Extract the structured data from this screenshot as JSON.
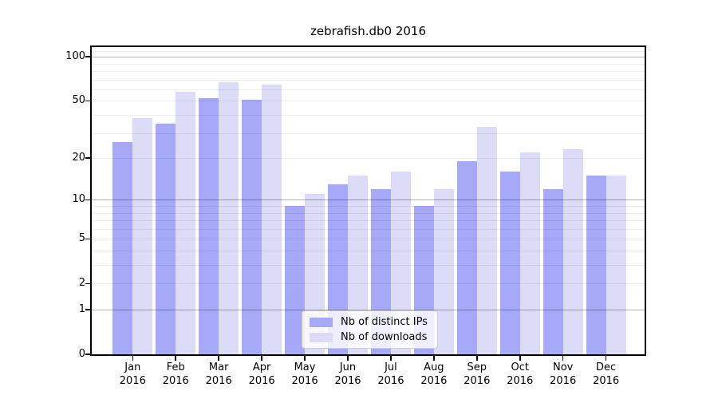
{
  "chart_data": {
    "type": "bar",
    "title": "zebrafish.db0 2016",
    "yscale": "log1p",
    "ylim": [
      0,
      118
    ],
    "grid": true,
    "legend_position": "lower center",
    "yticks": [
      0,
      1,
      2,
      5,
      10,
      20,
      50,
      100
    ],
    "major_gridlines": [
      1,
      10,
      100
    ],
    "minor_gridlines": [
      2,
      3,
      4,
      5,
      6,
      7,
      8,
      9,
      20,
      30,
      40,
      50,
      60,
      70,
      80,
      90,
      110
    ],
    "categories": [
      "Jan 2016",
      "Feb 2016",
      "Mar 2016",
      "Apr 2016",
      "May 2016",
      "Jun 2016",
      "Jul 2016",
      "Aug 2016",
      "Sep 2016",
      "Oct 2016",
      "Nov 2016",
      "Dec 2016"
    ],
    "series": [
      {
        "name": "Nb of distinct IPs",
        "color": "#a8a8f8",
        "values": [
          26,
          35,
          52,
          51,
          9,
          13,
          12,
          9,
          19,
          16,
          12,
          15
        ]
      },
      {
        "name": "Nb of downloads",
        "color": "#dcdcf8",
        "values": [
          38,
          58,
          67,
          65,
          11,
          15,
          16,
          12,
          33,
          22,
          23,
          15
        ]
      }
    ]
  }
}
